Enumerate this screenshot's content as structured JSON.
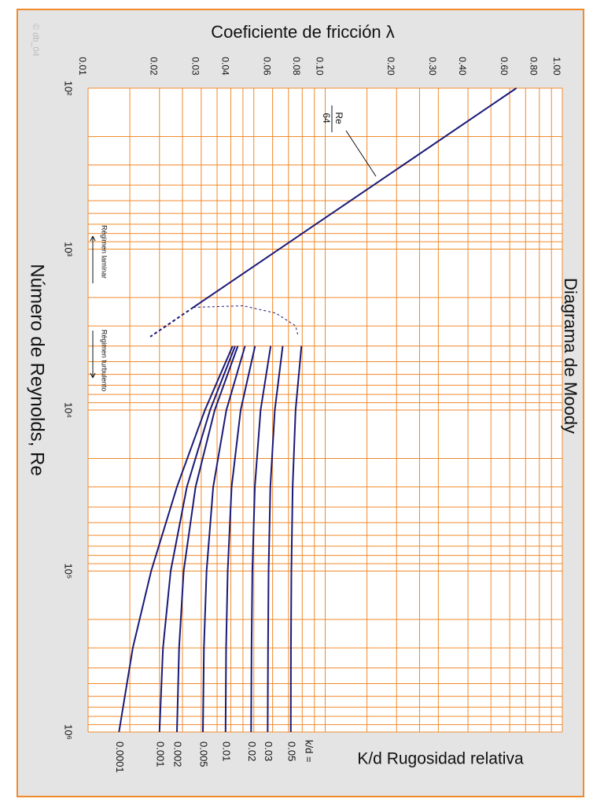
{
  "chart_data": {
    "type": "line",
    "title": "Diagrama de Moody",
    "xlabel": "Número de Reynolds, Re",
    "ylabel": "Coeficiente de fricción λ",
    "roughness_label": "K/d Rugosidad relativa",
    "roughness_prefix": "k/d =",
    "watermark": "© db_04",
    "log_x": true,
    "log_y": true,
    "grid": true,
    "xlim": [
      100,
      1000000
    ],
    "ylim": [
      0.01,
      1.0
    ],
    "xticks": [
      {
        "value": 100,
        "label": "10²"
      },
      {
        "value": 1000,
        "label": "10³"
      },
      {
        "value": 10000,
        "label": "10⁴"
      },
      {
        "value": 100000,
        "label": "10⁵"
      },
      {
        "value": 1000000,
        "label": "10⁶"
      }
    ],
    "yticks": [
      0.01,
      0.02,
      0.03,
      0.04,
      0.06,
      0.08,
      {
        "value": 0.1,
        "label": "0.10"
      },
      {
        "value": 0.2,
        "label": "0.20"
      },
      {
        "value": 0.3,
        "label": "0.30"
      },
      {
        "value": 0.4,
        "label": "0.40"
      },
      {
        "value": 0.6,
        "label": "0.60"
      },
      {
        "value": 0.8,
        "label": "0.80"
      },
      {
        "value": 1.0,
        "label": "1.00"
      }
    ],
    "xgrid": [
      200,
      300,
      400,
      500,
      600,
      700,
      800,
      900,
      2000,
      3000,
      4000,
      5000,
      6000,
      7000,
      8000,
      9000,
      20000,
      30000,
      40000,
      50000,
      60000,
      70000,
      80000,
      90000,
      200000,
      300000,
      400000,
      500000,
      600000,
      700000,
      800000,
      900000
    ],
    "ygrid": [
      0.015,
      0.025,
      0.035,
      0.045,
      0.05,
      0.07,
      0.09,
      0.15,
      0.25,
      0.5,
      0.7,
      0.9
    ],
    "laminar": {
      "x": [
        100,
        2300
      ],
      "values": [
        0.64,
        0.0278
      ],
      "color": "#1a1a78"
    },
    "laminar_extension": {
      "x": [
        2300,
        3500
      ],
      "values": [
        0.0278,
        0.0183
      ],
      "color": "#1a1a78"
    },
    "transition": {
      "x": [
        2300,
        2250,
        2500,
        3000,
        3500
      ],
      "values": [
        0.0278,
        0.045,
        0.062,
        0.075,
        0.077
      ],
      "color": "#1a1a78"
    },
    "annotations": {
      "numerator": "64",
      "denominator": "Re",
      "laminar": "Régimen laminar",
      "turbulent": "Régimen turbulento"
    },
    "series": [
      {
        "name": "0.0001",
        "color": "#1a1a78",
        "x": [
          4000,
          10000,
          30000,
          100000,
          300000,
          1000000
        ],
        "values": [
          0.0407,
          0.0311,
          0.0237,
          0.01845,
          0.01544,
          0.0135
        ]
      },
      {
        "name": "0.001",
        "color": "#1a1a78",
        "x": [
          4000,
          10000,
          30000,
          100000,
          300000,
          1000000
        ],
        "values": [
          0.0417,
          0.0327,
          0.0261,
          0.0223,
          0.0207,
          0.02
        ]
      },
      {
        "name": "0.002",
        "color": "#1a1a78",
        "x": [
          4000,
          10000,
          30000,
          100000,
          300000,
          1000000
        ],
        "values": [
          0.0428,
          0.0342,
          0.0284,
          0.0253,
          0.0242,
          0.0237
        ]
      },
      {
        "name": "0.005",
        "color": "#1a1a78",
        "x": [
          4000,
          10000,
          30000,
          100000,
          300000,
          1000000
        ],
        "values": [
          0.0459,
          0.0383,
          0.0337,
          0.0316,
          0.0308,
          0.0305
        ]
      },
      {
        "name": "0.01",
        "color": "#1a1a78",
        "x": [
          4000,
          10000,
          30000,
          100000,
          300000,
          1000000
        ],
        "values": [
          0.0506,
          0.044,
          0.0403,
          0.0388,
          0.0382,
          0.038
        ]
      },
      {
        "name": "0.02",
        "color": "#1a1a78",
        "x": [
          4000,
          10000,
          30000,
          100000,
          300000,
          1000000
        ],
        "values": [
          0.0589,
          0.0534,
          0.0505,
          0.0493,
          0.0489,
          0.0487
        ]
      },
      {
        "name": "0.03",
        "color": "#1a1a78",
        "x": [
          4000,
          10000,
          30000,
          100000,
          300000,
          1000000
        ],
        "values": [
          0.0662,
          0.0613,
          0.0587,
          0.0577,
          0.0574,
          0.0572
        ]
      },
      {
        "name": "0.05",
        "color": "#1a1a78",
        "x": [
          4000,
          10000,
          30000,
          100000,
          300000,
          1000000
        ],
        "values": [
          0.0794,
          0.075,
          0.0729,
          0.072,
          0.0717,
          0.0716
        ]
      }
    ]
  }
}
